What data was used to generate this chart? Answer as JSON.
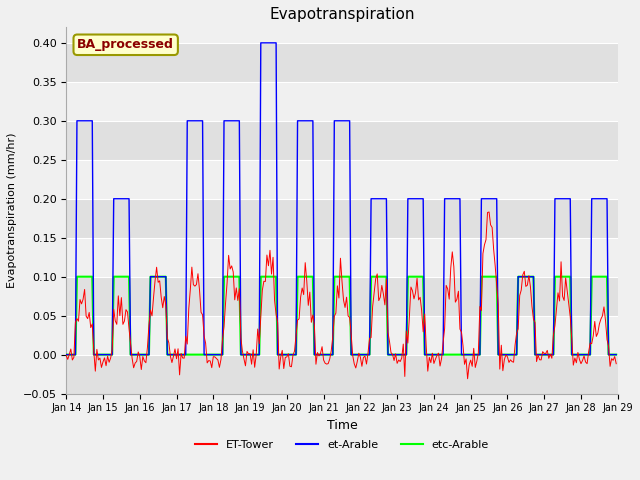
{
  "title": "Evapotranspiration",
  "xlabel": "Time",
  "ylabel": "Evapotranspiration (mm/hr)",
  "ylim": [
    -0.05,
    0.42
  ],
  "xlim": [
    0,
    360
  ],
  "fig_bg_color": "#f0f0f0",
  "plot_bg_color": "#f0f0f0",
  "band_color_light": "#f0f0f0",
  "band_color_dark": "#e0e0e0",
  "legend_label": "BA_processed",
  "legend_text_color": "#8b0000",
  "legend_box_facecolor": "#ffffcc",
  "legend_box_edgecolor": "#999900",
  "tick_labels": [
    "Jan 14",
    "Jan 15",
    "Jan 16",
    "Jan 17",
    "Jan 18",
    "Jan 19",
    "Jan 20",
    "Jan 21",
    "Jan 22",
    "Jan 23",
    "Jan 24",
    "Jan 25",
    "Jan 26",
    "Jan 27",
    "Jan 28",
    "Jan 29"
  ],
  "yticks": [
    -0.05,
    0.0,
    0.05,
    0.1,
    0.15,
    0.2,
    0.25,
    0.3,
    0.35,
    0.4
  ],
  "et_arable_peaks": [
    0.3,
    0.2,
    0.1,
    0.3,
    0.3,
    0.4,
    0.3,
    0.3,
    0.2,
    0.2,
    0.2,
    0.2,
    0.1,
    0.2,
    0.2
  ],
  "etc_arable_active": [
    0,
    1,
    2,
    4,
    5,
    6,
    7,
    8,
    9,
    11,
    12,
    13,
    14
  ]
}
